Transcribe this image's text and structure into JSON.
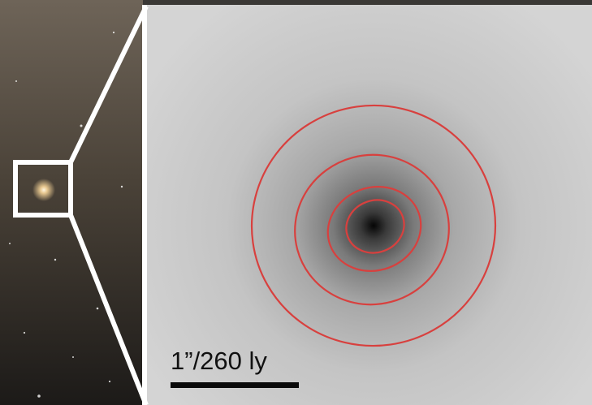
{
  "scale_bar": {
    "label": "1”/260 ly"
  }
}
